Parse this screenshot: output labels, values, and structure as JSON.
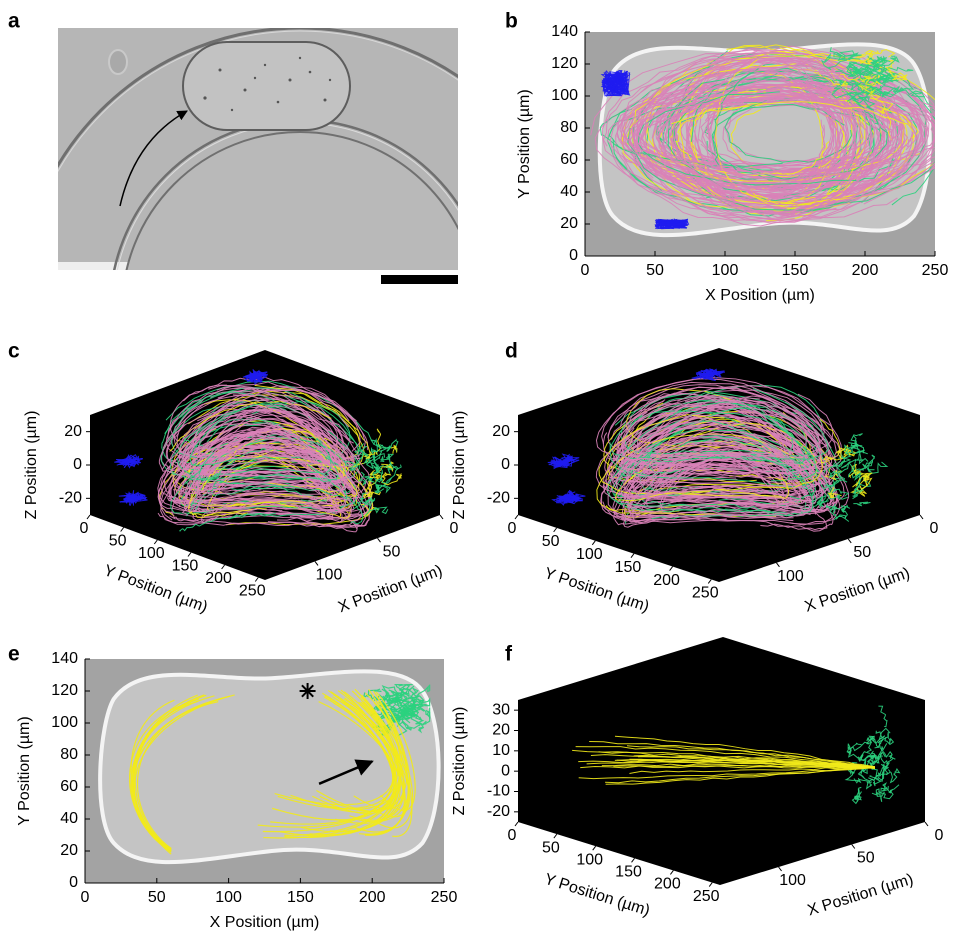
{
  "image_panel": {
    "label": "a"
  },
  "chart_data": [
    {
      "label": "b",
      "type": "tracks2d",
      "xlabel": "X Position (µm)",
      "ylabel": "Y Position (µm)",
      "xlim": [
        0,
        250
      ],
      "ylim": [
        0,
        140
      ],
      "xticks": [
        0,
        50,
        100,
        150,
        200,
        250
      ],
      "yticks": [
        0,
        20,
        40,
        60,
        80,
        100,
        120,
        140
      ],
      "colors": [
        "#d982b8",
        "#f2ea1a",
        "#2bd27e",
        "#1f1cf0"
      ]
    },
    {
      "label": "c",
      "type": "tracks3d",
      "xlabel": "X Position (µm)",
      "ylabel": "Y Position (µm)",
      "zlabel": "Z Position (µm)",
      "xlim": [
        0,
        140
      ],
      "ylim": [
        0,
        260
      ],
      "zlim": [
        -30,
        30
      ],
      "xticks": [
        0,
        50,
        100
      ],
      "yticks": [
        0,
        50,
        100,
        150,
        200,
        250
      ],
      "zticks": [
        -20,
        0,
        20
      ],
      "colors": [
        "#d982b8",
        "#f2ea1a",
        "#2bd27e",
        "#1f1cf0"
      ]
    },
    {
      "label": "d",
      "type": "tracks3d",
      "xlabel": "X Position (µm)",
      "ylabel": "Y Position (µm)",
      "zlabel": "Z Position (µm)",
      "xlim": [
        0,
        140
      ],
      "ylim": [
        0,
        260
      ],
      "zlim": [
        -30,
        30
      ],
      "xticks": [
        0,
        50,
        100
      ],
      "yticks": [
        0,
        50,
        100,
        150,
        200,
        250
      ],
      "zticks": [
        -20,
        0,
        20
      ],
      "colors": [
        "#d982b8",
        "#f2ea1a",
        "#2bd27e",
        "#1f1cf0"
      ]
    },
    {
      "label": "e",
      "type": "tracks2d",
      "xlabel": "X Position (µm)",
      "ylabel": "Y Position (µm)",
      "xlim": [
        0,
        250
      ],
      "ylim": [
        0,
        140
      ],
      "xticks": [
        0,
        50,
        100,
        150,
        200,
        250
      ],
      "yticks": [
        0,
        20,
        40,
        60,
        80,
        100,
        120,
        140
      ],
      "colors": [
        "#f2ea1a",
        "#2bd27e"
      ]
    },
    {
      "label": "f",
      "type": "tracks3d",
      "xlabel": "X Position (µm)",
      "ylabel": "Y Position (µm)",
      "zlabel": "Z Position (µm)",
      "xlim": [
        0,
        140
      ],
      "ylim": [
        0,
        260
      ],
      "zlim": [
        -25,
        35
      ],
      "xticks": [
        0,
        50,
        100
      ],
      "yticks": [
        0,
        50,
        100,
        150,
        200,
        250
      ],
      "zticks": [
        -20,
        -10,
        0,
        10,
        20,
        30
      ],
      "colors": [
        "#f2ea1a",
        "#2bd27e"
      ]
    }
  ]
}
